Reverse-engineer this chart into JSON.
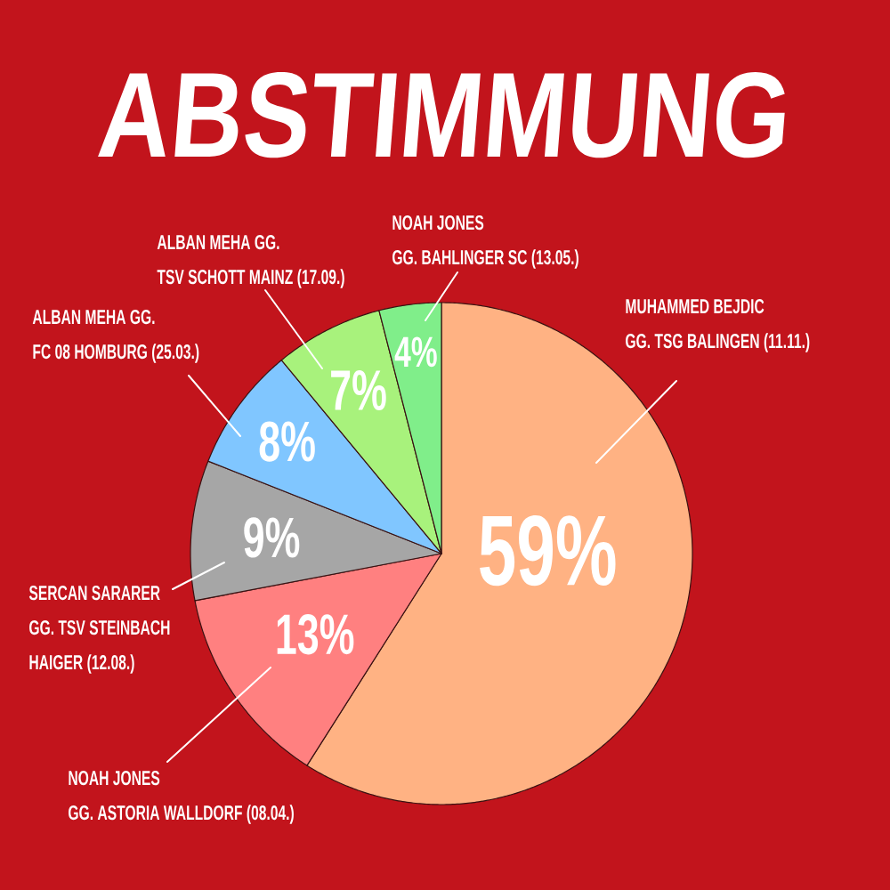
{
  "chart_data": {
    "type": "pie",
    "title": "ABSTIMMUNG",
    "categories": [
      "MUHAMMED BEJDIC GG. TSG BALINGEN (11.11.)",
      "NOAH JONES GG. ASTORIA WALLDORF (08.04.)",
      "SERCAN SARARER GG. TSV STEINBACH HAIGER (12.08.)",
      "ALBAN MEHA GG. FC 08 HOMBURG (25.03.)",
      "ALBAN MEHA GG. TSV SCHOTT MAINZ (17.09.)",
      "NOAH JONES GG. BAHLINGER SC (13.05.)"
    ],
    "values": [
      59,
      13,
      9,
      8,
      7,
      4
    ],
    "colors": [
      "#ffb283",
      "#ff8080",
      "#a6a6a6",
      "#80c6ff",
      "#a8f27c",
      "#80ee8a"
    ],
    "value_labels": [
      "59%",
      "13%",
      "9%",
      "8%",
      "7%",
      "4%"
    ]
  }
}
